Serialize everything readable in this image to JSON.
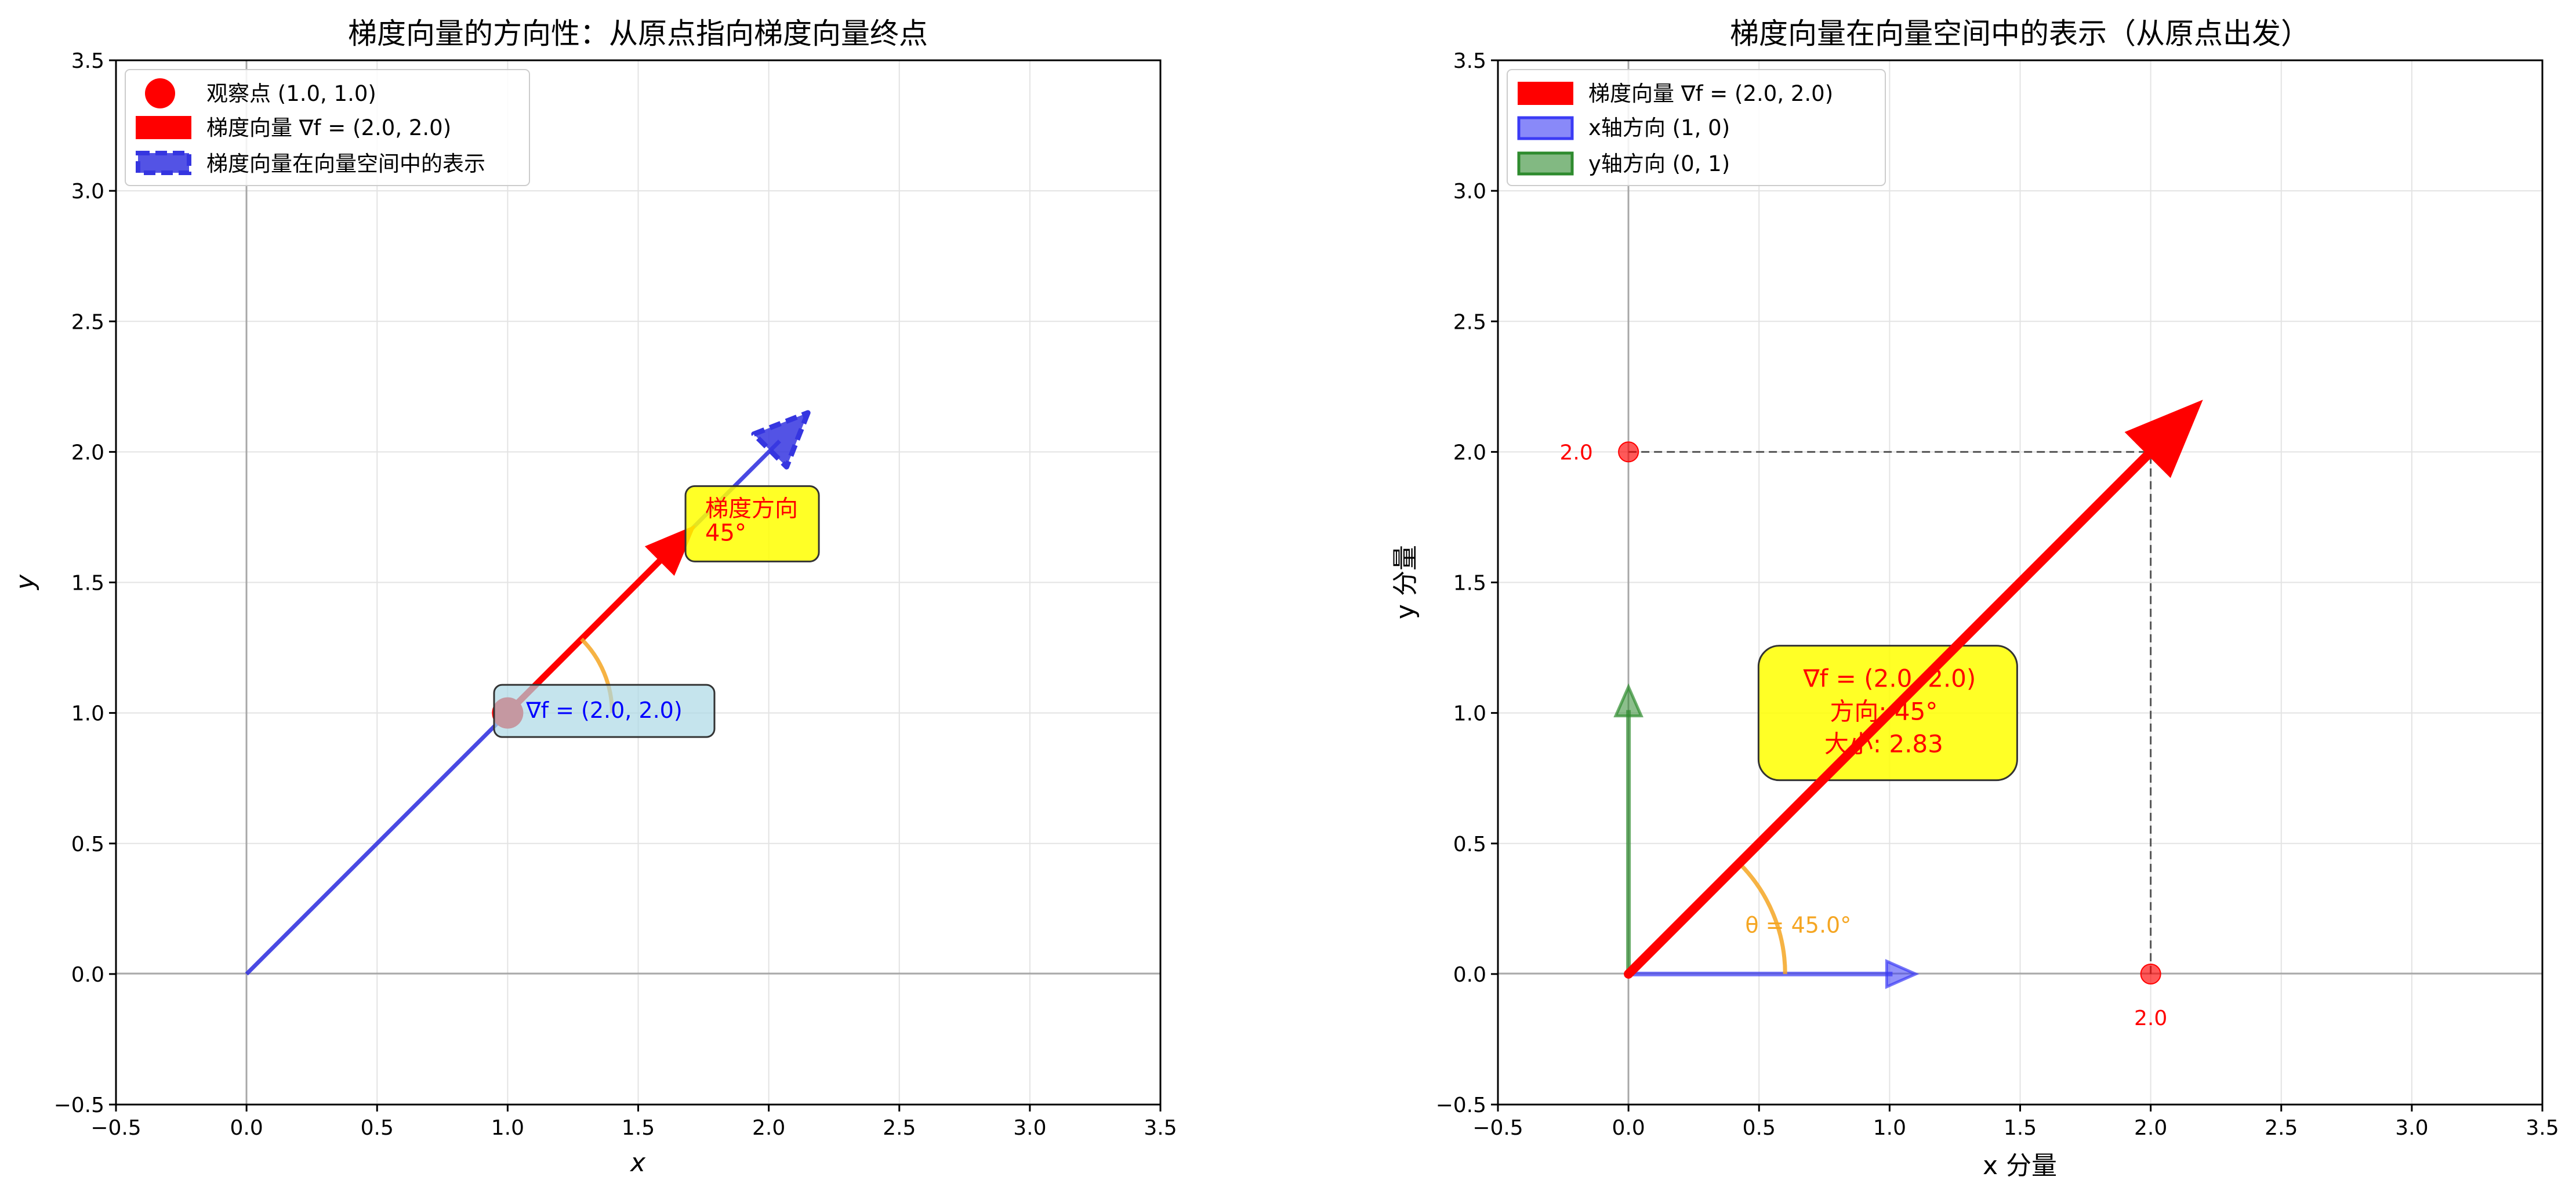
{
  "chart_data": [
    {
      "type": "line",
      "title": "梯度向量的方向性：从原点指向梯度向量终点",
      "xlabel": "x",
      "ylabel": "y",
      "xlim": [
        -0.5,
        3.5
      ],
      "ylim": [
        -0.5,
        3.5
      ],
      "xticks": [
        "−0.5",
        "0.0",
        "0.5",
        "1.0",
        "1.5",
        "2.0",
        "2.5",
        "3.0",
        "3.5"
      ],
      "yticks": [
        "−0.5",
        "0.0",
        "0.5",
        "1.0",
        "1.5",
        "2.0",
        "2.5",
        "3.0",
        "3.5"
      ],
      "grid": true,
      "legend_position": "top-left",
      "point": {
        "x": 1.0,
        "y": 1.0,
        "color": "#ff0000"
      },
      "series": [
        {
          "name": "观察点 (1.0, 1.0)",
          "kind": "point",
          "color": "#ff0000"
        },
        {
          "name": "梯度向量 ∇f = (2.0, 2.0)",
          "kind": "arrow",
          "x0": 1.0,
          "y0": 1.0,
          "x1": 1.72,
          "y1": 1.72,
          "color": "#ff0000"
        },
        {
          "name": "梯度向量在向量空间中的表示",
          "kind": "dashed-arrow",
          "x0": 0.0,
          "y0": 0.0,
          "x1": 2.15,
          "y1": 2.15,
          "color": "#3535e0"
        }
      ],
      "annotations": [
        {
          "text": "∇f = (2.0, 2.0)",
          "x": 1.37,
          "y": 1.03,
          "color": "#0000ff",
          "box": "#add8e6"
        },
        {
          "text_lines": [
            "梯度方向",
            "45°"
          ],
          "x": 1.73,
          "y": 1.78,
          "color": "#ff0000",
          "box": "#ffff00"
        }
      ],
      "angle_arc": {
        "angle_deg": 45,
        "center_x": 1.0,
        "center_y": 1.0,
        "radius": 0.4,
        "color": "#f5a623"
      }
    },
    {
      "type": "line",
      "title": "梯度向量在向量空间中的表示（从原点出发）",
      "xlabel": "x 分量",
      "ylabel": "y 分量",
      "xlim": [
        -0.5,
        3.5
      ],
      "ylim": [
        -0.5,
        3.5
      ],
      "xticks": [
        "−0.5",
        "0.0",
        "0.5",
        "1.0",
        "1.5",
        "2.0",
        "2.5",
        "3.0",
        "3.5"
      ],
      "yticks": [
        "−0.5",
        "0.0",
        "0.5",
        "1.0",
        "1.5",
        "2.0",
        "2.5",
        "3.0",
        "3.5"
      ],
      "grid": true,
      "legend_position": "top-left",
      "series": [
        {
          "name": "梯度向量 ∇f = (2.0, 2.0)",
          "kind": "arrow",
          "x0": 0.0,
          "y0": 0.0,
          "x1": 2.2,
          "y1": 2.2,
          "color": "#ff0000"
        },
        {
          "name": "x轴方向 (1, 0)",
          "kind": "arrow",
          "x0": 0.0,
          "y0": 0.0,
          "x1": 1.1,
          "y1": 0.0,
          "color": "#3b3bf5"
        },
        {
          "name": "y轴方向 (0, 1)",
          "kind": "arrow",
          "x0": 0.0,
          "y0": 0.0,
          "x1": 0.0,
          "y1": 1.1,
          "color": "#2e8b2e"
        }
      ],
      "projection_points": [
        {
          "x": 0.0,
          "y": 2.0,
          "label": "2.0"
        },
        {
          "x": 2.0,
          "y": 0.0,
          "label": "2.0"
        }
      ],
      "annotations": [
        {
          "text_lines": [
            "∇f = (2.0, 2.0)",
            "方向: 45°",
            "大小: 2.83"
          ],
          "x": 1.0,
          "y": 1.0,
          "color": "#ff0000",
          "box": "#ffff00"
        },
        {
          "text": "θ = 45.0°",
          "x": 0.65,
          "y": 0.19,
          "color": "#f5a623"
        }
      ],
      "angle_arc": {
        "angle_deg": 45,
        "center_x": 0.0,
        "center_y": 0.0,
        "radius": 0.6,
        "color": "#f5a623"
      }
    }
  ]
}
